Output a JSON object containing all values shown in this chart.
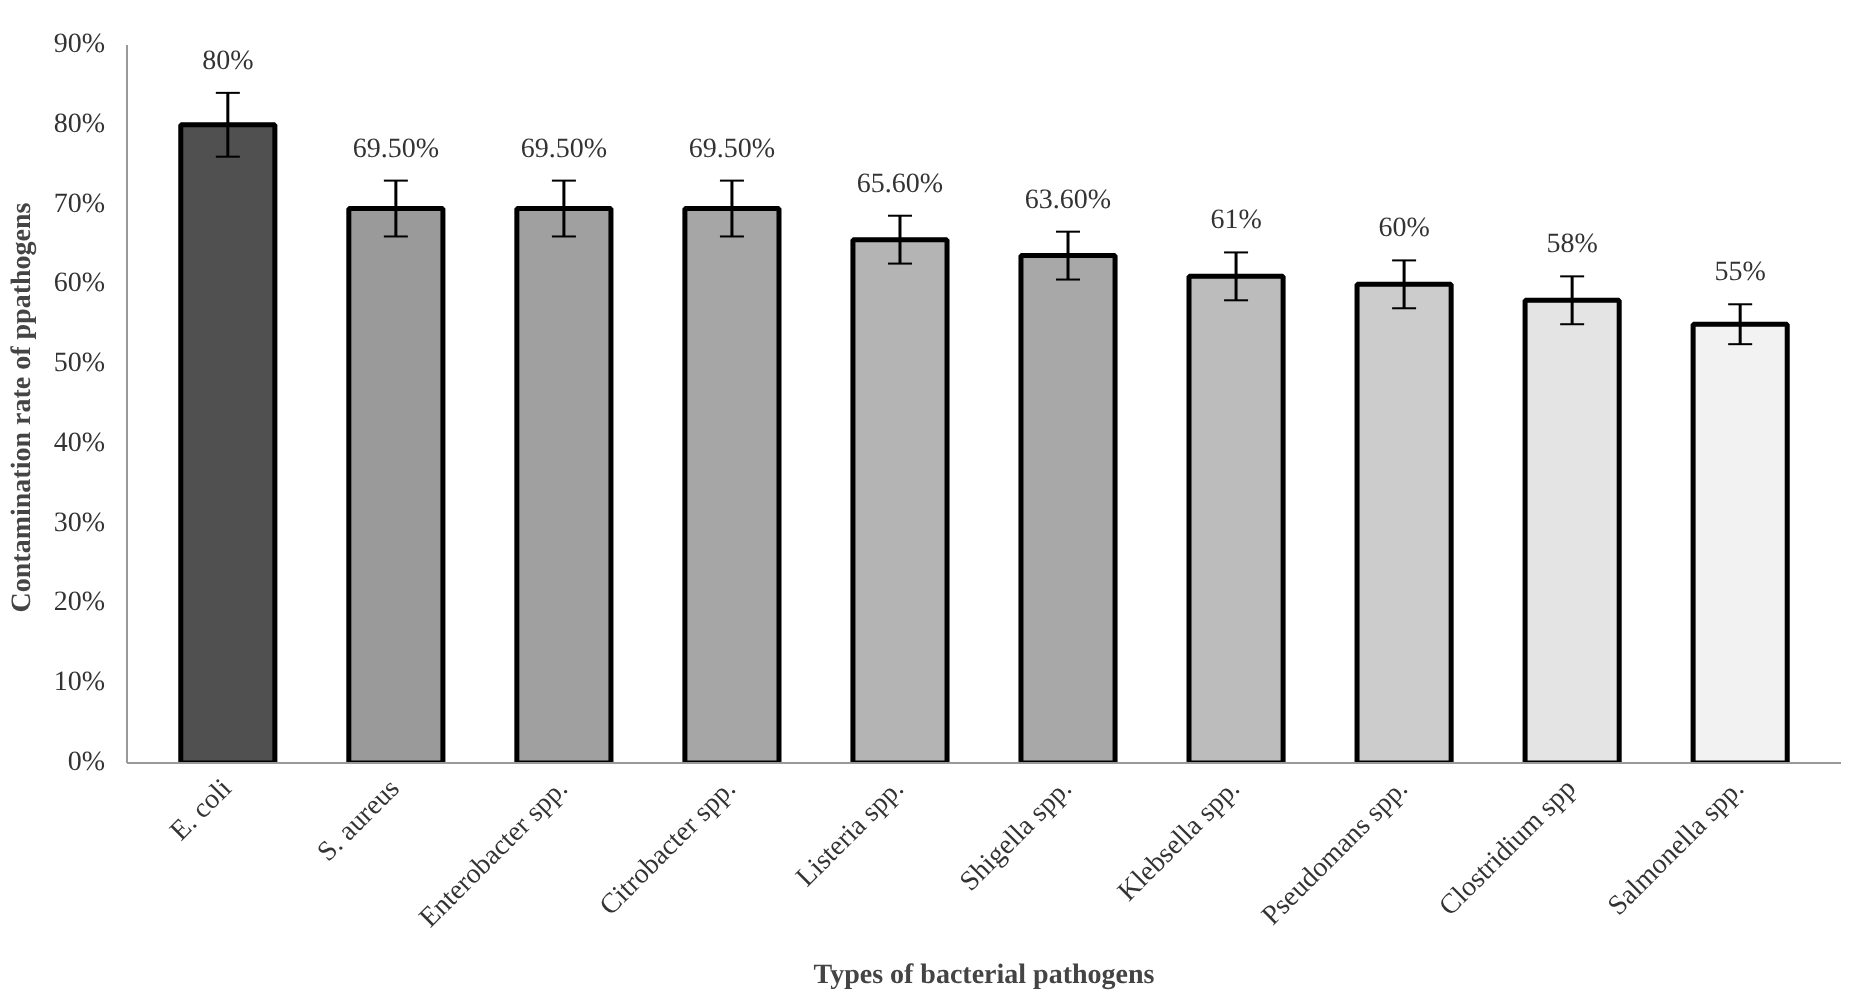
{
  "chart_data": {
    "type": "bar",
    "xlabel": "Types of bacterial pathogens",
    "ylabel": "Contamination  rate of ppathogens",
    "categories": [
      "E. coli",
      "S. aureus",
      "Enterobacter spp.",
      "Citrobacter spp.",
      "Listeria spp.",
      "Shigella spp.",
      "Klebsella spp.",
      "Pseudomans spp.",
      "Clostridium spp",
      "Salmonella spp."
    ],
    "values": [
      80,
      69.5,
      69.5,
      69.5,
      65.6,
      63.6,
      61,
      60,
      58,
      55
    ],
    "errors": [
      4,
      3.5,
      3.5,
      3.5,
      3,
      3,
      3,
      3,
      3,
      2.5
    ],
    "value_labels": [
      "80%",
      "69.50%",
      "69.50%",
      "69.50%",
      "65.60%",
      "63.60%",
      "61%",
      "60%",
      "58%",
      "55%"
    ],
    "colors": [
      "#505050",
      "#9a9a9a",
      "#a0a0a0",
      "#a6a6a6",
      "#b4b4b4",
      "#a8a8a8",
      "#bcbcbc",
      "#cccccc",
      "#e4e4e4",
      "#f2f2f2"
    ],
    "ylim": [
      0,
      90
    ],
    "yticks": [
      {
        "value": 0,
        "label": "0%"
      },
      {
        "value": 10,
        "label": "10%"
      },
      {
        "value": 20,
        "label": "20%"
      },
      {
        "value": 30,
        "label": "30%"
      },
      {
        "value": 40,
        "label": "40%"
      },
      {
        "value": 50,
        "label": "50%"
      },
      {
        "value": 60,
        "label": "60%"
      },
      {
        "value": 70,
        "label": "70%"
      },
      {
        "value": 80,
        "label": "80%"
      },
      {
        "value": 90,
        "label": "90%"
      }
    ],
    "grid": false
  }
}
